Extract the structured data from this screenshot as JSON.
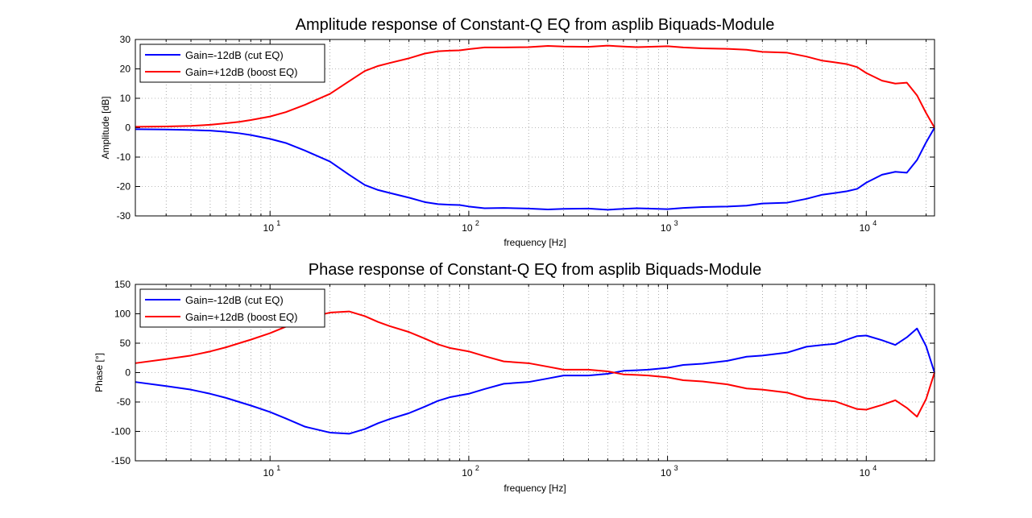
{
  "chart_data": [
    {
      "type": "line",
      "title": "Amplitude response of Constant-Q EQ from asplib Biquads-Module",
      "xlabel": "frequency [Hz]",
      "ylabel": "Amplitude [dB]",
      "xscale": "log",
      "xlim": [
        2.1,
        22050
      ],
      "ylim": [
        -30,
        30
      ],
      "yticks": [
        "-30",
        "-20",
        "-10",
        "0",
        "10",
        "20",
        "30"
      ],
      "xticks": [
        {
          "base": "10",
          "exp": "1"
        },
        {
          "base": "10",
          "exp": "2"
        },
        {
          "base": "10",
          "exp": "3"
        },
        {
          "base": "10",
          "exp": "4"
        }
      ],
      "grid": true,
      "legend_position": "top-left",
      "series": [
        {
          "name": "Gain=-12dB (cut EQ)",
          "color": "#0000ff",
          "points": [
            [
              2.1,
              -0.5
            ],
            [
              3,
              -0.6
            ],
            [
              4,
              -0.8
            ],
            [
              5,
              -1
            ],
            [
              6,
              -1.4
            ],
            [
              7,
              -1.9
            ],
            [
              8,
              -2.5
            ],
            [
              10,
              -3.8
            ],
            [
              12,
              -5.2
            ],
            [
              15,
              -7.8
            ],
            [
              20,
              -11.5
            ],
            [
              25,
              -16
            ],
            [
              30,
              -19.5
            ],
            [
              35,
              -21.2
            ],
            [
              40,
              -22.2
            ],
            [
              50,
              -23.8
            ],
            [
              60,
              -25.3
            ],
            [
              70,
              -26
            ],
            [
              80,
              -26.2
            ],
            [
              90,
              -26.3
            ],
            [
              100,
              -26.8
            ],
            [
              120,
              -27.4
            ],
            [
              150,
              -27.3
            ],
            [
              200,
              -27.5
            ],
            [
              250,
              -27.8
            ],
            [
              300,
              -27.6
            ],
            [
              400,
              -27.5
            ],
            [
              500,
              -27.9
            ],
            [
              600,
              -27.6
            ],
            [
              700,
              -27.4
            ],
            [
              800,
              -27.5
            ],
            [
              1000,
              -27.7
            ],
            [
              1200,
              -27.3
            ],
            [
              1500,
              -27
            ],
            [
              2000,
              -26.8
            ],
            [
              2500,
              -26.5
            ],
            [
              3000,
              -25.8
            ],
            [
              4000,
              -25.5
            ],
            [
              5000,
              -24.2
            ],
            [
              6000,
              -22.8
            ],
            [
              7000,
              -22.2
            ],
            [
              8000,
              -21.6
            ],
            [
              9000,
              -20.8
            ],
            [
              10000,
              -18.7
            ],
            [
              12000,
              -16
            ],
            [
              14000,
              -15
            ],
            [
              16000,
              -15.3
            ],
            [
              18000,
              -11
            ],
            [
              20000,
              -5
            ],
            [
              22050,
              0
            ]
          ]
        },
        {
          "name": "Gain=+12dB (boost EQ)",
          "color": "#ff0000",
          "points": [
            [
              2.1,
              0.3
            ],
            [
              3,
              0.4
            ],
            [
              4,
              0.6
            ],
            [
              5,
              1
            ],
            [
              6,
              1.5
            ],
            [
              7,
              2
            ],
            [
              8,
              2.6
            ],
            [
              10,
              3.8
            ],
            [
              12,
              5.3
            ],
            [
              15,
              7.8
            ],
            [
              20,
              11.5
            ],
            [
              25,
              15.8
            ],
            [
              30,
              19.3
            ],
            [
              35,
              21
            ],
            [
              40,
              22
            ],
            [
              50,
              23.6
            ],
            [
              60,
              25.2
            ],
            [
              70,
              26
            ],
            [
              80,
              26.2
            ],
            [
              90,
              26.3
            ],
            [
              100,
              26.7
            ],
            [
              120,
              27.3
            ],
            [
              150,
              27.3
            ],
            [
              200,
              27.4
            ],
            [
              250,
              27.8
            ],
            [
              300,
              27.6
            ],
            [
              400,
              27.5
            ],
            [
              500,
              27.9
            ],
            [
              600,
              27.6
            ],
            [
              700,
              27.4
            ],
            [
              800,
              27.5
            ],
            [
              1000,
              27.7
            ],
            [
              1200,
              27.3
            ],
            [
              1500,
              27
            ],
            [
              2000,
              26.8
            ],
            [
              2500,
              26.5
            ],
            [
              3000,
              25.8
            ],
            [
              4000,
              25.5
            ],
            [
              5000,
              24.2
            ],
            [
              6000,
              22.8
            ],
            [
              7000,
              22.2
            ],
            [
              8000,
              21.6
            ],
            [
              9000,
              20.6
            ],
            [
              10000,
              18.6
            ],
            [
              12000,
              16
            ],
            [
              14000,
              15
            ],
            [
              16000,
              15.3
            ],
            [
              18000,
              11
            ],
            [
              20000,
              5
            ],
            [
              22050,
              0
            ]
          ]
        }
      ]
    },
    {
      "type": "line",
      "title": "Phase response of Constant-Q EQ from asplib Biquads-Module",
      "xlabel": "frequency [Hz]",
      "ylabel": "Phase [°]",
      "xscale": "log",
      "xlim": [
        2.1,
        22050
      ],
      "ylim": [
        -150,
        150
      ],
      "yticks": [
        "-150",
        "-100",
        "-50",
        "0",
        "50",
        "100",
        "150"
      ],
      "xticks": [
        {
          "base": "10",
          "exp": "1"
        },
        {
          "base": "10",
          "exp": "2"
        },
        {
          "base": "10",
          "exp": "3"
        },
        {
          "base": "10",
          "exp": "4"
        }
      ],
      "grid": true,
      "legend_position": "top-left",
      "series": [
        {
          "name": "Gain=-12dB (cut EQ)",
          "color": "#0000ff",
          "points": [
            [
              2.1,
              -16
            ],
            [
              3,
              -23
            ],
            [
              4,
              -29
            ],
            [
              5,
              -36
            ],
            [
              6,
              -43
            ],
            [
              7,
              -50
            ],
            [
              8,
              -56
            ],
            [
              10,
              -67
            ],
            [
              12,
              -78
            ],
            [
              15,
              -92
            ],
            [
              20,
              -102
            ],
            [
              25,
              -104
            ],
            [
              30,
              -96
            ],
            [
              35,
              -86
            ],
            [
              40,
              -79
            ],
            [
              50,
              -69
            ],
            [
              60,
              -58
            ],
            [
              70,
              -48
            ],
            [
              80,
              -42
            ],
            [
              100,
              -36
            ],
            [
              120,
              -28
            ],
            [
              150,
              -19
            ],
            [
              200,
              -16
            ],
            [
              250,
              -10
            ],
            [
              300,
              -5
            ],
            [
              400,
              -5
            ],
            [
              500,
              -2
            ],
            [
              600,
              3
            ],
            [
              700,
              4
            ],
            [
              800,
              5
            ],
            [
              1000,
              8
            ],
            [
              1200,
              13
            ],
            [
              1500,
              15
            ],
            [
              2000,
              20
            ],
            [
              2500,
              27
            ],
            [
              3000,
              29
            ],
            [
              4000,
              34
            ],
            [
              5000,
              44
            ],
            [
              6000,
              47
            ],
            [
              7000,
              49
            ],
            [
              8000,
              56
            ],
            [
              9000,
              62
            ],
            [
              10000,
              63
            ],
            [
              12000,
              55
            ],
            [
              14000,
              47
            ],
            [
              16000,
              60
            ],
            [
              18000,
              75
            ],
            [
              20000,
              45
            ],
            [
              22050,
              0
            ]
          ]
        },
        {
          "name": "Gain=+12dB (boost EQ)",
          "color": "#ff0000",
          "points": [
            [
              2.1,
              16
            ],
            [
              3,
              23
            ],
            [
              4,
              29
            ],
            [
              5,
              36
            ],
            [
              6,
              43
            ],
            [
              7,
              50
            ],
            [
              8,
              56
            ],
            [
              10,
              67
            ],
            [
              12,
              78
            ],
            [
              15,
              92
            ],
            [
              20,
              102
            ],
            [
              25,
              104
            ],
            [
              30,
              96
            ],
            [
              35,
              86
            ],
            [
              40,
              79
            ],
            [
              50,
              69
            ],
            [
              60,
              58
            ],
            [
              70,
              48
            ],
            [
              80,
              42
            ],
            [
              100,
              36
            ],
            [
              120,
              28
            ],
            [
              150,
              19
            ],
            [
              200,
              16
            ],
            [
              250,
              10
            ],
            [
              300,
              5
            ],
            [
              400,
              5
            ],
            [
              500,
              2
            ],
            [
              600,
              -3
            ],
            [
              700,
              -4
            ],
            [
              800,
              -5
            ],
            [
              1000,
              -8
            ],
            [
              1200,
              -13
            ],
            [
              1500,
              -15
            ],
            [
              2000,
              -20
            ],
            [
              2500,
              -27
            ],
            [
              3000,
              -29
            ],
            [
              4000,
              -34
            ],
            [
              5000,
              -44
            ],
            [
              6000,
              -47
            ],
            [
              7000,
              -49
            ],
            [
              8000,
              -56
            ],
            [
              9000,
              -62
            ],
            [
              10000,
              -63
            ],
            [
              12000,
              -55
            ],
            [
              14000,
              -47
            ],
            [
              16000,
              -60
            ],
            [
              18000,
              -75
            ],
            [
              20000,
              -45
            ],
            [
              22050,
              0
            ]
          ]
        }
      ]
    }
  ]
}
